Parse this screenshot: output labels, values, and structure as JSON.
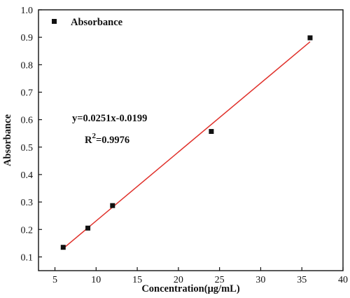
{
  "chart_data": {
    "type": "scatter",
    "title": "",
    "xlabel": "Concentration(μg/mL)",
    "ylabel": "Absorbance",
    "xlim": [
      3,
      40
    ],
    "ylim": [
      0.05,
      1.0
    ],
    "x_ticks": [
      5,
      10,
      15,
      20,
      25,
      30,
      35,
      40
    ],
    "y_ticks": [
      0.1,
      0.2,
      0.3,
      0.4,
      0.5,
      0.6,
      0.7,
      0.8,
      0.9,
      1.0
    ],
    "x_tick_labels": [
      "5",
      "10",
      "15",
      "20",
      "25",
      "30",
      "35",
      "40"
    ],
    "y_tick_labels": [
      "0.1",
      "0.2",
      "0.3",
      "0.4",
      "0.5",
      "0.6",
      "0.7",
      "0.8",
      "0.9",
      "1.0"
    ],
    "series": [
      {
        "name": "Absorbance",
        "marker": "square",
        "color": "#111111",
        "x": [
          6,
          9,
          12,
          24,
          36
        ],
        "y": [
          0.135,
          0.205,
          0.287,
          0.557,
          0.898
        ]
      }
    ],
    "fit_line": {
      "color": "#e0302a",
      "slope": 0.0251,
      "intercept": -0.0199,
      "x_range": [
        6,
        36
      ]
    },
    "annotations": {
      "equation": "y=0.0251x-0.0199",
      "r2_prefix": "R",
      "r2_sup": "2",
      "r2_value": "=0.9976"
    },
    "legend_position": "top-left",
    "grid": false
  }
}
